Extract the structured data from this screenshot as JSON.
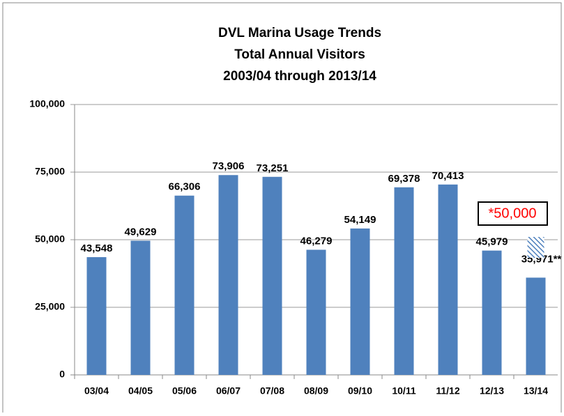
{
  "chart_data": {
    "type": "bar",
    "title": [
      "DVL Marina Usage Trends",
      "Total Annual Visitors",
      "2003/04 through 2013/14"
    ],
    "categories": [
      "03/04",
      "04/05",
      "05/06",
      "06/07",
      "07/08",
      "08/09",
      "09/10",
      "10/11",
      "11/12",
      "12/13",
      "13/14"
    ],
    "values": [
      43548,
      49629,
      66306,
      73906,
      73251,
      46279,
      54149,
      69378,
      70413,
      45979,
      35971
    ],
    "value_labels": [
      "43,548",
      "49,629",
      "66,306",
      "73,906",
      "73,251",
      "46,279",
      "54,149",
      "69,378",
      "70,413",
      "45,979",
      "35,971**"
    ],
    "color": "#4f81bd",
    "projection": {
      "value": 50000,
      "label": "*50,000",
      "color": "#ff0000"
    },
    "ylim": [
      0,
      100000
    ],
    "yticks": [
      0,
      {
        "value": 25000,
        "label": "25,000"
      },
      {
        "value": 50000,
        "label": "50,000"
      },
      {
        "value": 75000,
        "label": "75,000"
      },
      {
        "value": 100000,
        "label": "100,000"
      }
    ],
    "grid": true
  }
}
